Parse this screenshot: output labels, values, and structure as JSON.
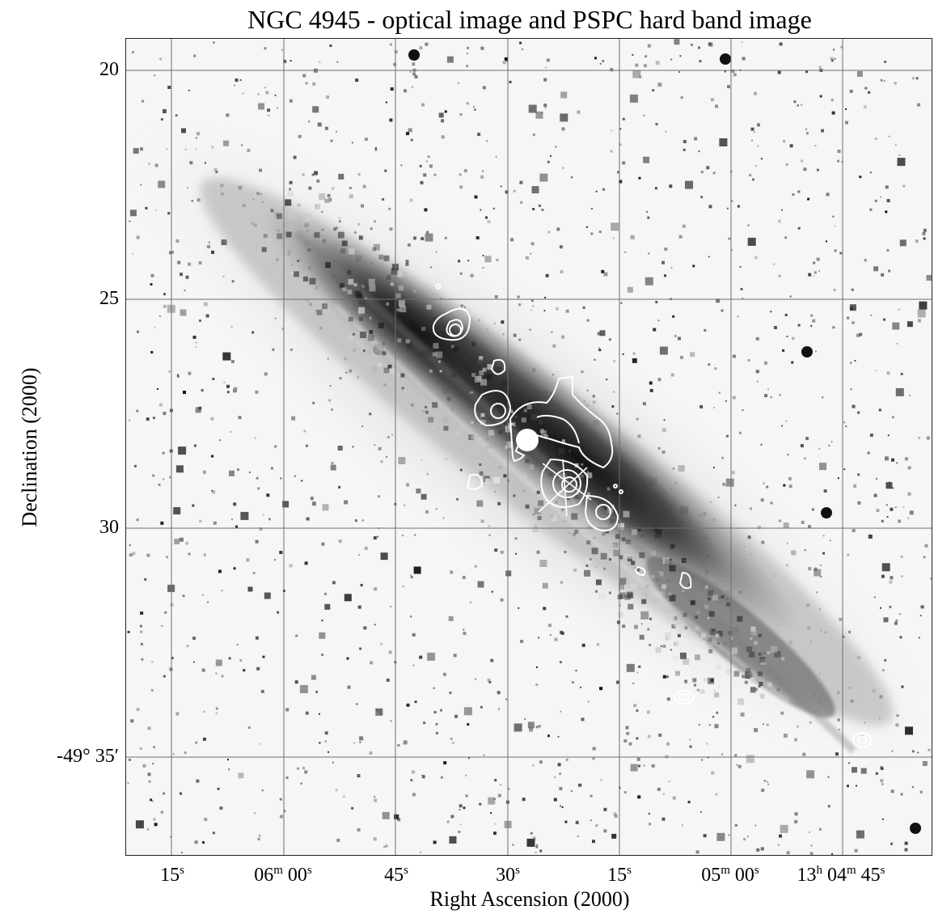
{
  "title": "NGC 4945 - optical image and PSPC hard band image",
  "axes": {
    "x_title": "Right Ascension (2000)",
    "y_title": "Declination (2000)",
    "y_ticks": [
      "20",
      "25",
      "30",
      "-49° 35′"
    ],
    "x_ticks": [
      {
        "main": "15",
        "sup": "s"
      },
      {
        "main": "06",
        "sup": "m",
        "after": " 00",
        "sup2": "s"
      },
      {
        "main": "45",
        "sup": "s"
      },
      {
        "main": "30",
        "sup": "s"
      },
      {
        "main": "15",
        "sup": "s"
      },
      {
        "main": "05",
        "sup": "m",
        "after": " 00",
        "sup2": "s"
      },
      {
        "main": "13",
        "sup": "h",
        "after": " 04",
        "sup2": "m",
        "after2": " 45",
        "sup3": "s"
      }
    ]
  },
  "image": {
    "description_icon": "galaxy-optical-image",
    "contour_color": "#ffffff",
    "grid_color": "#6e6e6e"
  }
}
